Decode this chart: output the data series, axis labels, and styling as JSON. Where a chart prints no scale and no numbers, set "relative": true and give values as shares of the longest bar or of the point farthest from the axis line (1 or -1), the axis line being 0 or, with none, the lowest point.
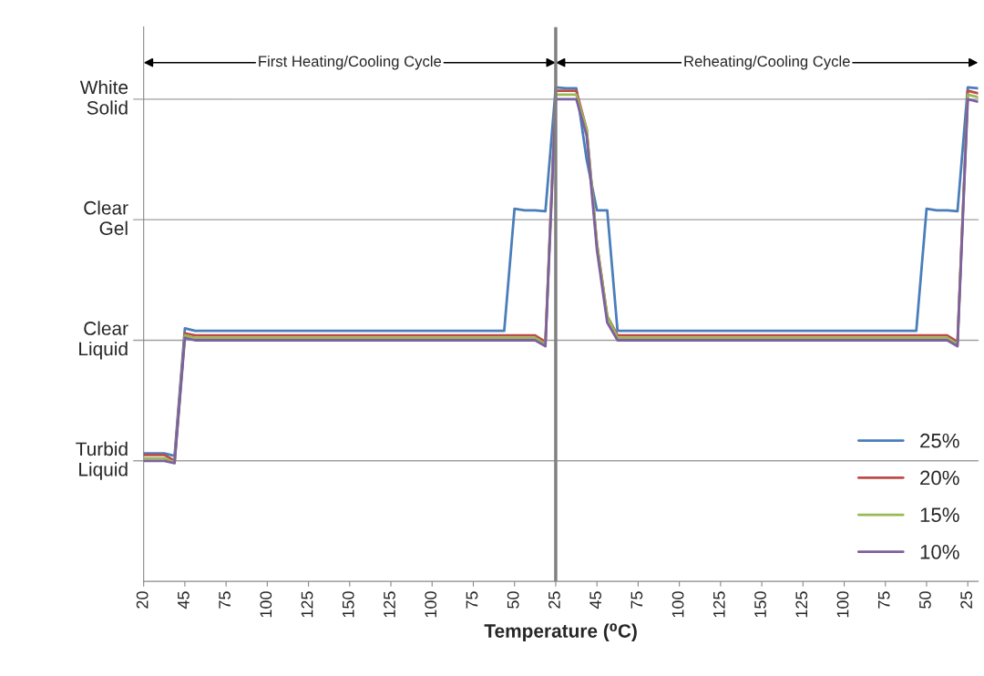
{
  "chart_data": {
    "type": "line",
    "xlabel": "Temperature (⁰C)",
    "relative": true,
    "categories": [
      "20",
      null,
      null,
      null,
      "45",
      null,
      null,
      null,
      "75",
      null,
      null,
      null,
      "100",
      null,
      null,
      null,
      "125",
      null,
      null,
      null,
      "150",
      null,
      null,
      null,
      "125",
      null,
      null,
      null,
      "100",
      null,
      null,
      null,
      "75",
      null,
      null,
      null,
      "50",
      null,
      null,
      null,
      "25",
      null,
      null,
      null,
      "45",
      null,
      null,
      null,
      "75",
      null,
      null,
      null,
      "100",
      null,
      null,
      null,
      "125",
      null,
      null,
      null,
      "150",
      null,
      null,
      null,
      "125",
      null,
      null,
      null,
      "100",
      null,
      null,
      null,
      "75",
      null,
      null,
      null,
      "50",
      null,
      null,
      null,
      "25",
      null
    ],
    "legend": "lower right",
    "line_style": "solid",
    "marker": "none",
    "ref_lines": [
      {
        "axis": "x",
        "value": "25",
        "color": "#808080"
      },
      {
        "axis": "y",
        "value": 0.244,
        "label": "Turbid\nLiquid",
        "color": "#a0a0a0"
      },
      {
        "axis": "y",
        "value": 0.488,
        "label": "Clear\nLiquid",
        "color": "#a0a0a0"
      },
      {
        "axis": "y",
        "value": 0.732,
        "label": "Clear\nGel",
        "color": "#a0a0a0"
      },
      {
        "axis": "y",
        "value": 0.976,
        "label": "White\nSolid",
        "color": "#a0a0a0"
      }
    ],
    "annotations": [
      "First Heating/Cooling Cycle",
      "Reheating/Cooling Cycle"
    ],
    "series": [
      {
        "name": "25%",
        "color": "#4a7ebb",
        "values": [
          0.259,
          0.259,
          0.259,
          0.254,
          0.512,
          0.507,
          0.507,
          0.507,
          0.507,
          0.507,
          0.507,
          0.507,
          0.507,
          0.507,
          0.507,
          0.507,
          0.507,
          0.507,
          0.507,
          0.507,
          0.507,
          0.507,
          0.507,
          0.507,
          0.507,
          0.507,
          0.507,
          0.507,
          0.507,
          0.507,
          0.507,
          0.507,
          0.507,
          0.507,
          0.507,
          0.507,
          0.754,
          0.751,
          0.751,
          0.749,
          1,
          0.998,
          0.998,
          0.854,
          0.751,
          0.751,
          0.507,
          0.507,
          0.507,
          0.507,
          0.507,
          0.507,
          0.507,
          0.507,
          0.507,
          0.507,
          0.507,
          0.507,
          0.507,
          0.507,
          0.507,
          0.507,
          0.507,
          0.507,
          0.507,
          0.507,
          0.507,
          0.507,
          0.507,
          0.507,
          0.507,
          0.507,
          0.507,
          0.507,
          0.507,
          0.507,
          0.754,
          0.751,
          0.751,
          0.749,
          1,
          0.998
        ]
      },
      {
        "name": "20%",
        "color": "#be4b48",
        "values": [
          0.256,
          0.256,
          0.256,
          0.244,
          0.502,
          0.498,
          0.498,
          0.498,
          0.498,
          0.498,
          0.498,
          0.498,
          0.498,
          0.498,
          0.498,
          0.498,
          0.498,
          0.498,
          0.498,
          0.498,
          0.498,
          0.498,
          0.498,
          0.498,
          0.498,
          0.498,
          0.498,
          0.498,
          0.498,
          0.498,
          0.498,
          0.498,
          0.498,
          0.498,
          0.498,
          0.498,
          0.498,
          0.498,
          0.498,
          0.485,
          0.993,
          0.993,
          0.993,
          0.915,
          0.683,
          0.537,
          0.498,
          0.498,
          0.498,
          0.498,
          0.498,
          0.498,
          0.498,
          0.498,
          0.498,
          0.498,
          0.498,
          0.498,
          0.498,
          0.498,
          0.498,
          0.498,
          0.498,
          0.498,
          0.498,
          0.498,
          0.498,
          0.498,
          0.498,
          0.498,
          0.498,
          0.498,
          0.498,
          0.498,
          0.498,
          0.498,
          0.498,
          0.498,
          0.498,
          0.485,
          0.993,
          0.988
        ]
      },
      {
        "name": "15%",
        "color": "#98b954",
        "values": [
          0.249,
          0.249,
          0.249,
          0.241,
          0.498,
          0.493,
          0.493,
          0.493,
          0.493,
          0.493,
          0.493,
          0.493,
          0.493,
          0.493,
          0.493,
          0.493,
          0.493,
          0.493,
          0.493,
          0.493,
          0.493,
          0.493,
          0.493,
          0.493,
          0.493,
          0.493,
          0.493,
          0.493,
          0.493,
          0.493,
          0.493,
          0.493,
          0.493,
          0.493,
          0.493,
          0.493,
          0.493,
          0.493,
          0.493,
          0.48,
          0.985,
          0.985,
          0.985,
          0.915,
          0.683,
          0.537,
          0.493,
          0.493,
          0.493,
          0.493,
          0.493,
          0.493,
          0.493,
          0.493,
          0.493,
          0.493,
          0.493,
          0.493,
          0.493,
          0.493,
          0.493,
          0.493,
          0.493,
          0.493,
          0.493,
          0.493,
          0.493,
          0.493,
          0.493,
          0.493,
          0.493,
          0.493,
          0.493,
          0.493,
          0.493,
          0.493,
          0.493,
          0.493,
          0.493,
          0.48,
          0.985,
          0.98
        ]
      },
      {
        "name": "10%",
        "color": "#7d60a0",
        "values": [
          0.244,
          0.244,
          0.244,
          0.239,
          0.493,
          0.488,
          0.488,
          0.488,
          0.488,
          0.488,
          0.488,
          0.488,
          0.488,
          0.488,
          0.488,
          0.488,
          0.488,
          0.488,
          0.488,
          0.488,
          0.488,
          0.488,
          0.488,
          0.488,
          0.488,
          0.488,
          0.488,
          0.488,
          0.488,
          0.488,
          0.488,
          0.488,
          0.488,
          0.488,
          0.488,
          0.488,
          0.488,
          0.488,
          0.488,
          0.476,
          0.976,
          0.976,
          0.976,
          0.902,
          0.671,
          0.524,
          0.488,
          0.488,
          0.488,
          0.488,
          0.488,
          0.488,
          0.488,
          0.488,
          0.488,
          0.488,
          0.488,
          0.488,
          0.488,
          0.488,
          0.488,
          0.488,
          0.488,
          0.488,
          0.488,
          0.488,
          0.488,
          0.488,
          0.488,
          0.488,
          0.488,
          0.488,
          0.488,
          0.488,
          0.488,
          0.488,
          0.488,
          0.488,
          0.488,
          0.476,
          0.976,
          0.971
        ]
      }
    ]
  }
}
